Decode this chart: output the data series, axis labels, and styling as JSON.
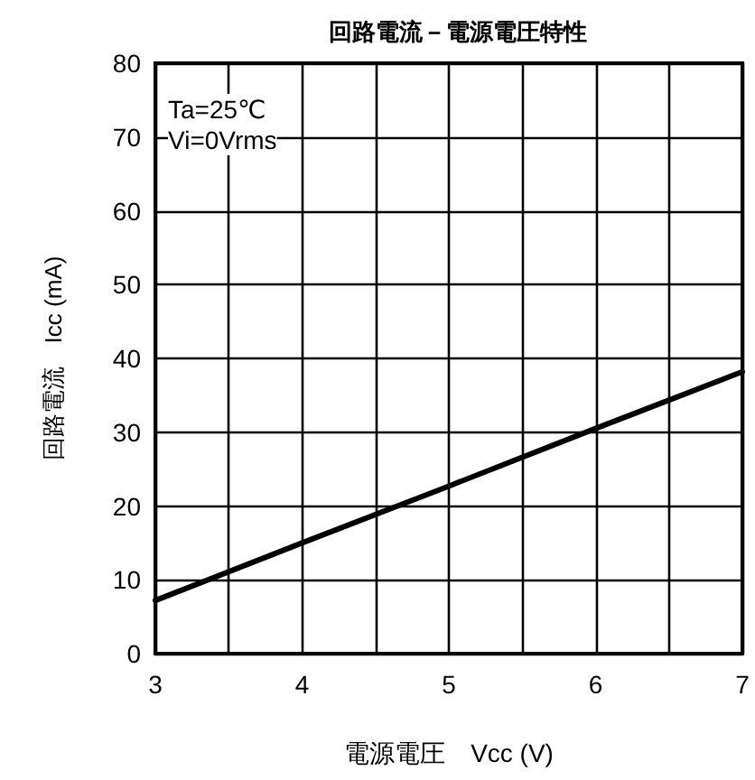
{
  "chart_data": {
    "type": "line",
    "title": "回路電流－電源電圧特性",
    "xlabel": "電源電圧　Vcc (V)",
    "ylabel": "回路電流　Icc (mA)",
    "annotations": [
      "Ta=25℃\nVi=0Vrms"
    ],
    "x": [
      3,
      4,
      5,
      6,
      7
    ],
    "series": [
      {
        "color": "#000000",
        "values": [
          7.2,
          15,
          22.7,
          30.5,
          38.2
        ]
      }
    ],
    "xlim": [
      3,
      7
    ],
    "xticks": [
      3,
      {
        "value": 3.5,
        "label": null
      },
      4,
      {
        "value": 4.5,
        "label": null
      },
      5,
      {
        "value": 5.5,
        "label": null
      },
      6,
      {
        "value": 6.5,
        "label": null
      },
      7
    ],
    "ylim": [
      0,
      80
    ],
    "yticks": [
      0,
      10,
      20,
      30,
      40,
      50,
      60,
      70,
      80
    ],
    "grid": true,
    "marker": "none",
    "line_style": "solid"
  }
}
